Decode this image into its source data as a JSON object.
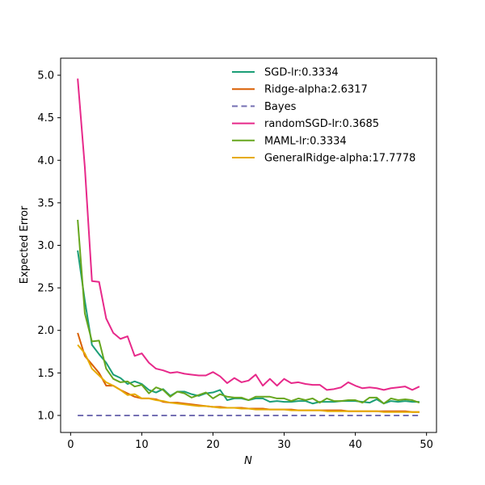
{
  "chart_data": {
    "type": "line",
    "title": "",
    "xlabel": "N",
    "ylabel": "Expected Error",
    "xlim": [
      -1.4,
      51.4
    ],
    "ylim": [
      0.8,
      5.2
    ],
    "x_ticks": [
      0,
      10,
      20,
      30,
      40,
      50
    ],
    "y_ticks": [
      1.0,
      1.5,
      2.0,
      2.5,
      3.0,
      3.5,
      4.0,
      4.5,
      5.0
    ],
    "x_tick_labels": [
      "0",
      "10",
      "20",
      "30",
      "40",
      "50"
    ],
    "y_tick_labels": [
      "1.0",
      "1.5",
      "2.0",
      "2.5",
      "3.0",
      "3.5",
      "4.0",
      "4.5",
      "5.0"
    ],
    "grid": false,
    "legend_position": "top-right",
    "x": [
      1,
      2,
      3,
      4,
      5,
      6,
      7,
      8,
      9,
      10,
      11,
      12,
      13,
      14,
      15,
      16,
      17,
      18,
      19,
      20,
      21,
      22,
      23,
      24,
      25,
      26,
      27,
      28,
      29,
      30,
      31,
      32,
      33,
      34,
      35,
      36,
      37,
      38,
      39,
      40,
      41,
      42,
      43,
      44,
      45,
      46,
      47,
      48,
      49
    ],
    "series": [
      {
        "name": "SGD-lr:0.3334",
        "color": "#1b9e77",
        "dashed": false,
        "values": [
          2.94,
          2.35,
          1.83,
          1.72,
          1.62,
          1.48,
          1.44,
          1.37,
          1.4,
          1.37,
          1.3,
          1.27,
          1.31,
          1.23,
          1.28,
          1.28,
          1.25,
          1.23,
          1.26,
          1.27,
          1.3,
          1.18,
          1.2,
          1.2,
          1.18,
          1.2,
          1.2,
          1.16,
          1.17,
          1.16,
          1.16,
          1.17,
          1.17,
          1.14,
          1.16,
          1.16,
          1.16,
          1.17,
          1.17,
          1.17,
          1.16,
          1.15,
          1.19,
          1.14,
          1.17,
          1.16,
          1.17,
          1.16,
          1.16
        ]
      },
      {
        "name": "Ridge-alpha:2.6317",
        "color": "#d95f02",
        "dashed": false,
        "values": [
          1.97,
          1.7,
          1.6,
          1.5,
          1.35,
          1.35,
          1.3,
          1.26,
          1.22,
          1.2,
          1.2,
          1.19,
          1.16,
          1.15,
          1.15,
          1.14,
          1.13,
          1.12,
          1.11,
          1.1,
          1.1,
          1.09,
          1.09,
          1.09,
          1.08,
          1.08,
          1.08,
          1.07,
          1.07,
          1.07,
          1.07,
          1.06,
          1.06,
          1.06,
          1.06,
          1.06,
          1.06,
          1.06,
          1.05,
          1.05,
          1.05,
          1.05,
          1.05,
          1.05,
          1.05,
          1.05,
          1.05,
          1.04,
          1.04
        ]
      },
      {
        "name": "Bayes",
        "color": "#7570b3",
        "dashed": true,
        "values": [
          1.0,
          1.0,
          1.0,
          1.0,
          1.0,
          1.0,
          1.0,
          1.0,
          1.0,
          1.0,
          1.0,
          1.0,
          1.0,
          1.0,
          1.0,
          1.0,
          1.0,
          1.0,
          1.0,
          1.0,
          1.0,
          1.0,
          1.0,
          1.0,
          1.0,
          1.0,
          1.0,
          1.0,
          1.0,
          1.0,
          1.0,
          1.0,
          1.0,
          1.0,
          1.0,
          1.0,
          1.0,
          1.0,
          1.0,
          1.0,
          1.0,
          1.0,
          1.0,
          1.0,
          1.0,
          1.0,
          1.0,
          1.0,
          1.0
        ]
      },
      {
        "name": "randomSGD-lr:0.3685",
        "color": "#e7298a",
        "dashed": false,
        "values": [
          4.96,
          3.92,
          2.58,
          2.57,
          2.14,
          1.97,
          1.9,
          1.93,
          1.7,
          1.73,
          1.62,
          1.55,
          1.53,
          1.5,
          1.51,
          1.49,
          1.48,
          1.47,
          1.47,
          1.51,
          1.46,
          1.38,
          1.44,
          1.39,
          1.41,
          1.48,
          1.35,
          1.43,
          1.35,
          1.43,
          1.38,
          1.39,
          1.37,
          1.36,
          1.36,
          1.3,
          1.31,
          1.33,
          1.39,
          1.35,
          1.32,
          1.33,
          1.32,
          1.3,
          1.32,
          1.33,
          1.34,
          1.3,
          1.34
        ]
      },
      {
        "name": "MAML-lr:0.3334",
        "color": "#66a61e",
        "dashed": false,
        "values": [
          3.3,
          2.2,
          1.87,
          1.88,
          1.55,
          1.43,
          1.39,
          1.4,
          1.34,
          1.36,
          1.26,
          1.33,
          1.3,
          1.22,
          1.28,
          1.26,
          1.21,
          1.24,
          1.27,
          1.2,
          1.25,
          1.22,
          1.21,
          1.21,
          1.18,
          1.22,
          1.22,
          1.22,
          1.2,
          1.2,
          1.17,
          1.2,
          1.18,
          1.2,
          1.15,
          1.2,
          1.17,
          1.17,
          1.18,
          1.18,
          1.15,
          1.21,
          1.21,
          1.14,
          1.2,
          1.18,
          1.19,
          1.18,
          1.15
        ]
      },
      {
        "name": "GeneralRidge-alpha:17.7778",
        "color": "#e6ab02",
        "dashed": false,
        "values": [
          1.83,
          1.73,
          1.55,
          1.47,
          1.39,
          1.35,
          1.3,
          1.24,
          1.25,
          1.2,
          1.2,
          1.18,
          1.17,
          1.15,
          1.14,
          1.13,
          1.12,
          1.11,
          1.11,
          1.1,
          1.09,
          1.09,
          1.09,
          1.08,
          1.08,
          1.07,
          1.07,
          1.07,
          1.07,
          1.07,
          1.06,
          1.06,
          1.06,
          1.06,
          1.06,
          1.05,
          1.05,
          1.05,
          1.05,
          1.05,
          1.05,
          1.05,
          1.05,
          1.04,
          1.04,
          1.04,
          1.04,
          1.04,
          1.04
        ]
      }
    ]
  }
}
